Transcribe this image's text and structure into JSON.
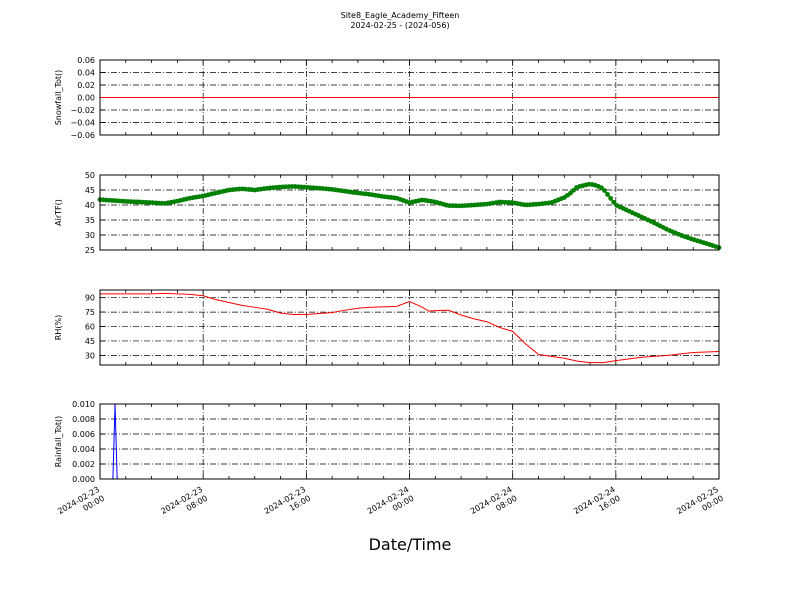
{
  "figure": {
    "title": "Site8_Eagle_Academy_Fifteen",
    "subtitle": "2024-02-25 - (2024-056)",
    "xlabel": "Date/Time"
  },
  "chart_data": [
    {
      "type": "line",
      "ylabel": "Snowfall_Tot()",
      "color": "#ff0000",
      "marker": "none",
      "xlim": [
        "2024-02-23 00:00",
        "2024-02-25 00:00"
      ],
      "ylim": [
        -0.06,
        0.06
      ],
      "yticks": [
        -0.06,
        -0.04,
        -0.02,
        0.0,
        0.02,
        0.04,
        0.06
      ],
      "ytick_labels": [
        "−0.06",
        "−0.04",
        "−0.02",
        "0.00",
        "0.02",
        "0.04",
        "0.06"
      ],
      "grid": true,
      "series": [
        {
          "x": [
            "2024-02-23 00:00",
            "2024-02-25 00:00"
          ],
          "y": [
            0,
            0
          ]
        }
      ]
    },
    {
      "type": "line",
      "ylabel": "AirTF()",
      "color": "#008000",
      "marker": "circle",
      "xlim": [
        "2024-02-23 00:00",
        "2024-02-25 00:00"
      ],
      "ylim": [
        25,
        50
      ],
      "yticks": [
        25,
        30,
        35,
        40,
        45,
        50
      ],
      "ytick_labels": [
        "25",
        "30",
        "35",
        "40",
        "45",
        "50"
      ],
      "grid": true,
      "series": [
        {
          "x": [
            "2024-02-23 00:00",
            "2024-02-23 01:00",
            "2024-02-23 02:00",
            "2024-02-23 03:00",
            "2024-02-23 04:00",
            "2024-02-23 05:00",
            "2024-02-23 06:00",
            "2024-02-23 07:00",
            "2024-02-23 08:00",
            "2024-02-23 09:00",
            "2024-02-23 10:00",
            "2024-02-23 11:00",
            "2024-02-23 12:00",
            "2024-02-23 13:00",
            "2024-02-23 14:00",
            "2024-02-23 15:00",
            "2024-02-23 16:00",
            "2024-02-23 17:00",
            "2024-02-23 18:00",
            "2024-02-23 19:00",
            "2024-02-23 20:00",
            "2024-02-23 21:00",
            "2024-02-23 22:00",
            "2024-02-23 23:00",
            "2024-02-24 00:00",
            "2024-02-24 01:00",
            "2024-02-24 02:00",
            "2024-02-24 03:00",
            "2024-02-24 04:00",
            "2024-02-24 05:00",
            "2024-02-24 06:00",
            "2024-02-24 07:00",
            "2024-02-24 08:00",
            "2024-02-24 09:00",
            "2024-02-24 10:00",
            "2024-02-24 11:00",
            "2024-02-24 12:00",
            "2024-02-24 12:30",
            "2024-02-24 13:00",
            "2024-02-24 14:00",
            "2024-02-24 14:30",
            "2024-02-24 15:00",
            "2024-02-24 16:00",
            "2024-02-24 17:00",
            "2024-02-24 18:00",
            "2024-02-24 19:00",
            "2024-02-24 20:00",
            "2024-02-24 21:00",
            "2024-02-24 22:00",
            "2024-02-24 23:00",
            "2024-02-25 00:00"
          ],
          "y": [
            41.8,
            41.5,
            41.2,
            41.0,
            40.8,
            40.5,
            41.3,
            42.3,
            43.0,
            44.0,
            45.0,
            45.4,
            45.0,
            45.6,
            46.0,
            46.2,
            45.9,
            45.6,
            45.2,
            44.6,
            44.0,
            43.5,
            42.8,
            42.3,
            40.8,
            41.7,
            41.0,
            39.8,
            39.7,
            40.0,
            40.3,
            41.0,
            40.8,
            40.0,
            40.3,
            40.8,
            42.5,
            44.0,
            46.0,
            47.0,
            46.5,
            45.5,
            40.0,
            38.0,
            36.0,
            34.0,
            31.8,
            30.0,
            28.5,
            27.2,
            25.8
          ]
        }
      ]
    },
    {
      "type": "line",
      "ylabel": "RH(%)",
      "color": "#ff0000",
      "marker": "none",
      "xlim": [
        "2024-02-23 00:00",
        "2024-02-25 00:00"
      ],
      "ylim": [
        20,
        98
      ],
      "yticks": [
        30,
        45,
        60,
        75,
        90
      ],
      "ytick_labels": [
        "30",
        "45",
        "60",
        "75",
        "90"
      ],
      "grid": true,
      "series": [
        {
          "x": [
            "2024-02-23 00:00",
            "2024-02-23 02:00",
            "2024-02-23 04:00",
            "2024-02-23 05:00",
            "2024-02-23 06:00",
            "2024-02-23 07:00",
            "2024-02-23 08:00",
            "2024-02-23 09:00",
            "2024-02-23 10:00",
            "2024-02-23 11:00",
            "2024-02-23 12:00",
            "2024-02-23 13:00",
            "2024-02-23 14:00",
            "2024-02-23 15:00",
            "2024-02-23 16:00",
            "2024-02-23 17:00",
            "2024-02-23 18:00",
            "2024-02-23 19:00",
            "2024-02-23 20:00",
            "2024-02-23 21:00",
            "2024-02-23 22:00",
            "2024-02-23 23:00",
            "2024-02-24 00:00",
            "2024-02-24 01:00",
            "2024-02-24 01:30",
            "2024-02-24 02:00",
            "2024-02-24 03:00",
            "2024-02-24 04:00",
            "2024-02-24 05:00",
            "2024-02-24 06:00",
            "2024-02-24 07:00",
            "2024-02-24 08:00",
            "2024-02-24 09:00",
            "2024-02-24 10:00",
            "2024-02-24 11:00",
            "2024-02-24 12:00",
            "2024-02-24 13:00",
            "2024-02-24 14:00",
            "2024-02-24 15:00",
            "2024-02-24 16:00",
            "2024-02-24 18:00",
            "2024-02-24 20:00",
            "2024-02-24 22:00",
            "2024-02-25 00:00"
          ],
          "y": [
            94,
            94,
            94,
            94.5,
            94,
            93.5,
            92,
            88,
            85,
            82,
            80,
            78,
            74,
            72.5,
            72.5,
            73.5,
            74.5,
            77,
            79,
            80,
            80.5,
            81,
            86,
            80,
            76,
            76.5,
            77,
            72,
            68,
            65,
            59,
            55,
            42,
            31,
            29,
            27,
            24,
            22.5,
            22.5,
            24.5,
            28,
            30,
            33,
            34
          ]
        }
      ]
    },
    {
      "type": "line",
      "ylabel": "Rainfall_Tot()",
      "color": "#0000ff",
      "marker": "none",
      "xlim": [
        "2024-02-23 00:00",
        "2024-02-25 00:00"
      ],
      "ylim": [
        0.0,
        0.01
      ],
      "yticks": [
        0.0,
        0.002,
        0.004,
        0.006,
        0.008,
        0.01
      ],
      "ytick_labels": [
        "0.000",
        "0.002",
        "0.004",
        "0.006",
        "0.008",
        "0.010"
      ],
      "grid": true,
      "xtick_labels": [
        [
          "2024-02-23",
          "00:00"
        ],
        [
          "2024-02-23",
          "08:00"
        ],
        [
          "2024-02-23",
          "16:00"
        ],
        [
          "2024-02-24",
          "00:00"
        ],
        [
          "2024-02-24",
          "08:00"
        ],
        [
          "2024-02-24",
          "16:00"
        ],
        [
          "2024-02-25",
          "00:00"
        ]
      ],
      "series": [
        {
          "x": [
            "2024-02-23 00:00",
            "2024-02-23 01:00",
            "2024-02-23 01:10",
            "2024-02-23 01:20",
            "2024-02-25 00:00"
          ],
          "y": [
            0.0,
            0.0,
            0.01,
            0.0,
            0.0
          ]
        }
      ]
    }
  ]
}
